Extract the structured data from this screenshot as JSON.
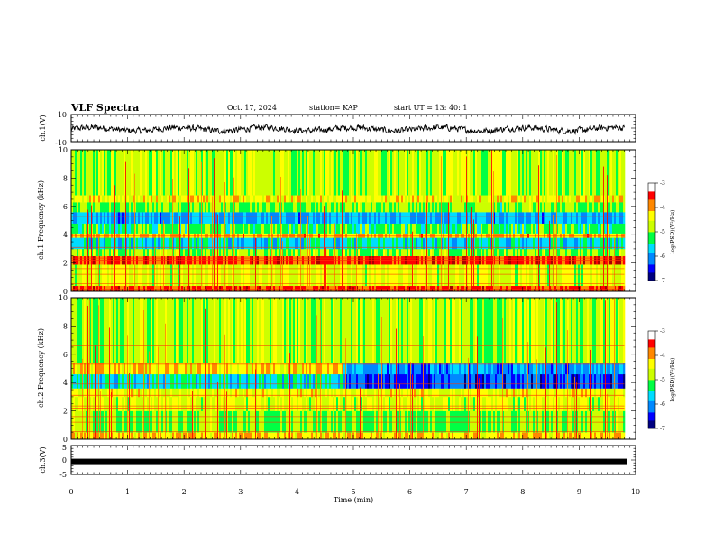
{
  "header": {
    "title": "VLF Spectra",
    "date": "Oct. 17, 2024",
    "station": "station= KAP",
    "start": "start  UT  =   13: 40: 1"
  },
  "colors": {
    "spectrum_scale": [
      "#000080",
      "#0000ff",
      "#0088ff",
      "#00ddff",
      "#00ff44",
      "#ccff00",
      "#ffff00",
      "#ff8800",
      "#ff0000",
      "#aa0000",
      "#ffffff"
    ],
    "trace": "#000000"
  },
  "chart_data": [
    {
      "type": "line",
      "panel": "ch1-waveform",
      "ylabel": "ch.1(V)",
      "ylim": [
        -10,
        10
      ],
      "y_ticks": [
        "10",
        "-10"
      ],
      "xlim": [
        0,
        10
      ],
      "trace_range_approx": [
        -6,
        6
      ]
    },
    {
      "type": "heatmap",
      "panel": "ch1-spectrogram",
      "ylabel": "ch.1 Frequency (kHz)",
      "ylim": [
        0,
        10
      ],
      "y_ticks": [
        "0",
        "2",
        "4",
        "6",
        "8",
        "10"
      ],
      "xlim": [
        0,
        9.8
      ],
      "colorbar": {
        "label": "log(PSD)(V²/Hz)",
        "range": [
          -7,
          -3
        ],
        "ticks": [
          "-3",
          "-4",
          "-5",
          "-6",
          "-7"
        ]
      },
      "bands_khz": [
        {
          "from": 0.0,
          "to": 0.4,
          "level": -3.6
        },
        {
          "from": 0.4,
          "to": 1.9,
          "level": -4.6
        },
        {
          "from": 1.9,
          "to": 2.5,
          "level": -3.5
        },
        {
          "from": 2.5,
          "to": 3.0,
          "level": -4.9
        },
        {
          "from": 3.0,
          "to": 3.8,
          "level": -5.6
        },
        {
          "from": 3.8,
          "to": 4.1,
          "level": -4.1
        },
        {
          "from": 4.1,
          "to": 4.8,
          "level": -5.2
        },
        {
          "from": 4.8,
          "to": 5.6,
          "level": -5.9
        },
        {
          "from": 5.6,
          "to": 6.3,
          "level": -5.0
        },
        {
          "from": 6.3,
          "to": 6.8,
          "level": -4.4
        },
        {
          "from": 6.8,
          "to": 10.0,
          "level": -4.8
        }
      ]
    },
    {
      "type": "heatmap",
      "panel": "ch2-spectrogram",
      "ylabel": "ch.2 Frequency (kHz)",
      "ylim": [
        0,
        10
      ],
      "y_ticks": [
        "0",
        "2",
        "4",
        "6",
        "8",
        "10"
      ],
      "xlim": [
        0,
        9.8
      ],
      "colorbar": {
        "label": "log(PSD)(V²/Hz)",
        "range": [
          -7,
          -3
        ],
        "ticks": [
          "-3",
          "-4",
          "-5",
          "-6",
          "-7"
        ]
      },
      "bands_khz": [
        {
          "from": 0.0,
          "to": 0.5,
          "level": -4.2
        },
        {
          "from": 0.5,
          "to": 2.0,
          "level": -5.0
        },
        {
          "from": 2.0,
          "to": 3.0,
          "level": -4.6
        },
        {
          "from": 3.0,
          "to": 3.6,
          "level": -4.5
        },
        {
          "from": 3.6,
          "to": 4.6,
          "level": -5.6
        },
        {
          "from": 4.6,
          "to": 5.4,
          "level": -4.3
        },
        {
          "from": 5.4,
          "to": 10.0,
          "level": -4.8
        }
      ],
      "regime_change_min": 4.8,
      "bands_after_change_khz": [
        {
          "from": 3.6,
          "to": 4.6,
          "level": -6.4
        },
        {
          "from": 4.6,
          "to": 6.0,
          "level": -6.0
        },
        {
          "from": 6.0,
          "to": 10.0,
          "level": -5.6
        }
      ]
    },
    {
      "type": "line",
      "panel": "ch3-waveform",
      "ylabel": "ch.3(V)",
      "ylim": [
        -5,
        5
      ],
      "y_ticks": [
        "5",
        "0",
        "-5"
      ],
      "xlim": [
        0,
        9.85
      ],
      "value_approx": -0.5
    }
  ],
  "xaxis": {
    "label": "Time  (min)",
    "ticks": [
      "0",
      "1",
      "2",
      "3",
      "4",
      "5",
      "6",
      "7",
      "8",
      "9",
      "10"
    ]
  }
}
